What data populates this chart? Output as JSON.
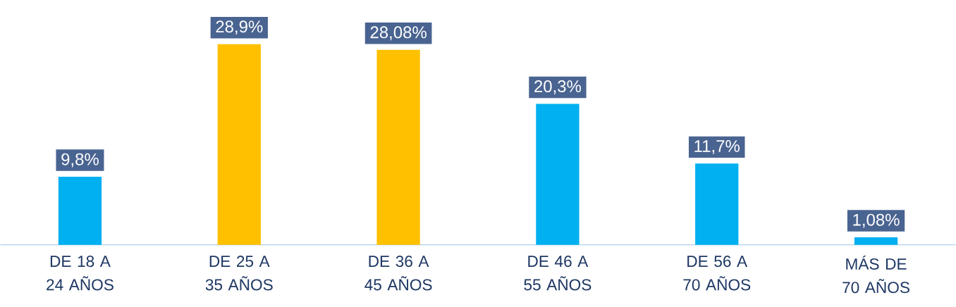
{
  "chart_data": {
    "type": "bar",
    "categories": [
      "DE 18 A 24 AÑOS",
      "DE 25 A 35 AÑOS",
      "DE 36 A 45 AÑOS",
      "DE 46 A 55 AÑOS",
      "DE 56 A 70 AÑOS",
      "MÁS DE 70 AÑOS"
    ],
    "values": [
      9.8,
      28.9,
      28.08,
      20.3,
      11.7,
      1.08
    ],
    "colors": [
      "#00b0f0",
      "#ffc000",
      "#ffc000",
      "#00b0f0",
      "#00b0f0",
      "#00b0f0"
    ],
    "value_labels": [
      "9,8%",
      "28,9%",
      "28,08%",
      "20,3%",
      "11,7%",
      "1,08%"
    ]
  }
}
